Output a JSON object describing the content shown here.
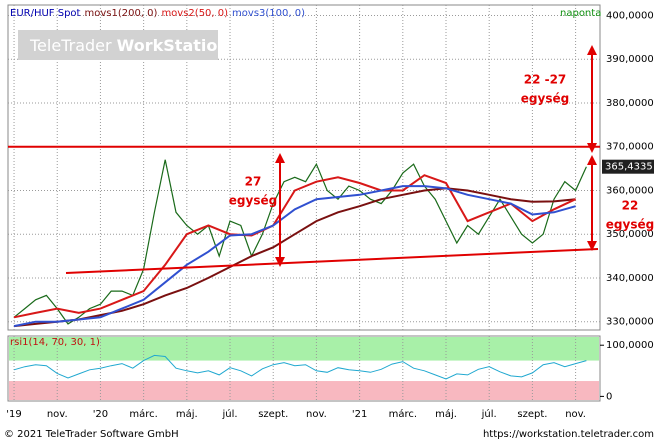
{
  "chart_data": {
    "type": "line",
    "watermark": [
      "TeleTrader",
      "WorkStation"
    ],
    "frequency": "naponta",
    "copyright": "© 2021 TeleTrader Software GmbH",
    "url": "https://workstation.teletrader.com",
    "xlim": [
      -0.28,
      27.13
    ],
    "xticks": [
      {
        "value": 0,
        "label": "'19"
      },
      {
        "value": 2,
        "label": "nov."
      },
      {
        "value": 4,
        "label": "'20"
      },
      {
        "value": 6,
        "label": "márc."
      },
      {
        "value": 8,
        "label": "máj."
      },
      {
        "value": 10,
        "label": "júl."
      },
      {
        "value": 12,
        "label": "szept."
      },
      {
        "value": 14,
        "label": "nov."
      },
      {
        "value": 16,
        "label": "'21"
      },
      {
        "value": 18,
        "label": "márc."
      },
      {
        "value": 20,
        "label": "máj."
      },
      {
        "value": 22,
        "label": "júl."
      },
      {
        "value": 24,
        "label": "szept."
      },
      {
        "value": 26,
        "label": "nov."
      }
    ],
    "ylim": [
      328.1,
      402.4
    ],
    "yticks": [
      {
        "value": 330,
        "label": "330,0000"
      },
      {
        "value": 340,
        "label": "340,0000"
      },
      {
        "value": 350,
        "label": "350,0000"
      },
      {
        "value": 360,
        "label": "360,0000"
      },
      {
        "value": 370,
        "label": "370,0000"
      },
      {
        "value": 380,
        "label": "380,0000"
      },
      {
        "value": 390,
        "label": "390,0000"
      },
      {
        "value": 400,
        "label": "400,0000"
      }
    ],
    "grid": true,
    "resistance": 370,
    "last_price": {
      "value": 365.4335,
      "label": "365,4335"
    },
    "series": [
      {
        "name": "EUR/HUF Spot",
        "color": "#1a6a1a",
        "x": [
          0,
          0.5,
          1,
          1.5,
          2,
          2.5,
          3,
          3.5,
          4,
          4.5,
          5,
          5.5,
          6,
          6.5,
          7,
          7.5,
          8,
          8.5,
          9,
          9.5,
          10,
          10.5,
          11,
          11.5,
          12,
          12.5,
          13,
          13.5,
          14,
          14.5,
          15,
          15.5,
          16,
          16.5,
          17,
          17.5,
          18,
          18.5,
          19,
          19.5,
          20,
          20.5,
          21,
          21.5,
          22,
          22.5,
          23,
          23.5,
          24,
          24.5,
          25,
          25.5,
          26,
          26.5
        ],
        "values": [
          331,
          333,
          335,
          336,
          333,
          329.5,
          331,
          333,
          334,
          337,
          337,
          336,
          342,
          355,
          367,
          355,
          352,
          350,
          352,
          345,
          353,
          352,
          345,
          350,
          357,
          362,
          363,
          362,
          366,
          360,
          358,
          361,
          360,
          358,
          357,
          360,
          364,
          366,
          361,
          358,
          353,
          348,
          352,
          350,
          354,
          358,
          354,
          350,
          348,
          350,
          358,
          362,
          360,
          365.4335
        ]
      },
      {
        "name": "movs1(200, 0)",
        "color": "#7a1010",
        "x": [
          0,
          1,
          2,
          3,
          4,
          5,
          6,
          7,
          8,
          9,
          10,
          11,
          12,
          13,
          14,
          15,
          16,
          17,
          18,
          19,
          20,
          21,
          22,
          23,
          24,
          25,
          26
        ],
        "values": [
          329,
          329.5,
          330,
          330.5,
          331.5,
          332.5,
          334,
          336,
          337.7,
          340,
          342.5,
          345,
          347,
          350,
          353,
          355,
          356.4,
          358,
          359,
          360,
          360.5,
          360,
          359,
          358,
          357.4,
          357.5,
          358
        ]
      },
      {
        "name": "movs2(50, 0)",
        "color": "#d81818",
        "x": [
          0,
          1,
          2,
          3,
          4,
          5,
          6,
          7,
          8,
          9,
          10,
          11,
          12,
          13,
          14,
          15,
          16,
          17,
          18,
          19,
          20,
          21,
          22,
          23,
          24,
          25,
          26
        ],
        "values": [
          331,
          332,
          333,
          332,
          333,
          335,
          337,
          343,
          350,
          352,
          350,
          349.7,
          352,
          360,
          362,
          363,
          361.7,
          360,
          360,
          363.5,
          361.7,
          353,
          355,
          357,
          353,
          355.7,
          358
        ]
      },
      {
        "name": "movs3(100, 0)",
        "color": "#3050d0",
        "x": [
          0,
          1,
          2,
          3,
          4,
          5,
          6,
          7,
          8,
          9,
          10,
          11,
          12,
          13,
          14,
          15,
          16,
          17,
          18,
          19,
          20,
          21,
          22,
          23,
          24,
          25,
          26
        ],
        "values": [
          329,
          330,
          330,
          330.5,
          331,
          333,
          335,
          339,
          343,
          346,
          349.7,
          350,
          352,
          355.7,
          358,
          358.5,
          359,
          360,
          361,
          361,
          360.5,
          359,
          358,
          357,
          354.5,
          355,
          356.4
        ]
      }
    ],
    "rsi": {
      "name": "rsi1(14, 70, 30, 1)",
      "color": "#20a8d0",
      "ylim": [
        -9,
        118
      ],
      "yticks": [
        {
          "value": 100,
          "label": "100,0000"
        },
        0
      ],
      "levels": [
        70,
        30
      ],
      "level_colors": [
        "#a8f0a8",
        "#f8b8c0"
      ],
      "values": [
        52,
        58,
        62,
        60,
        45,
        36,
        44,
        52,
        55,
        60,
        64,
        55,
        70,
        80,
        78,
        55,
        50,
        46,
        50,
        42,
        56,
        50,
        40,
        54,
        62,
        66,
        60,
        62,
        50,
        47,
        56,
        52,
        50,
        47,
        53,
        63,
        68,
        55,
        50,
        42,
        34,
        44,
        42,
        53,
        58,
        48,
        40,
        38,
        46,
        62,
        66,
        58,
        64,
        70
      ]
    },
    "annotations": [
      {
        "text": [
          "22 -27",
          "egység"
        ]
      },
      {
        "text": [
          "27",
          "egység"
        ]
      },
      {
        "text": [
          "22",
          "egység"
        ]
      }
    ]
  }
}
